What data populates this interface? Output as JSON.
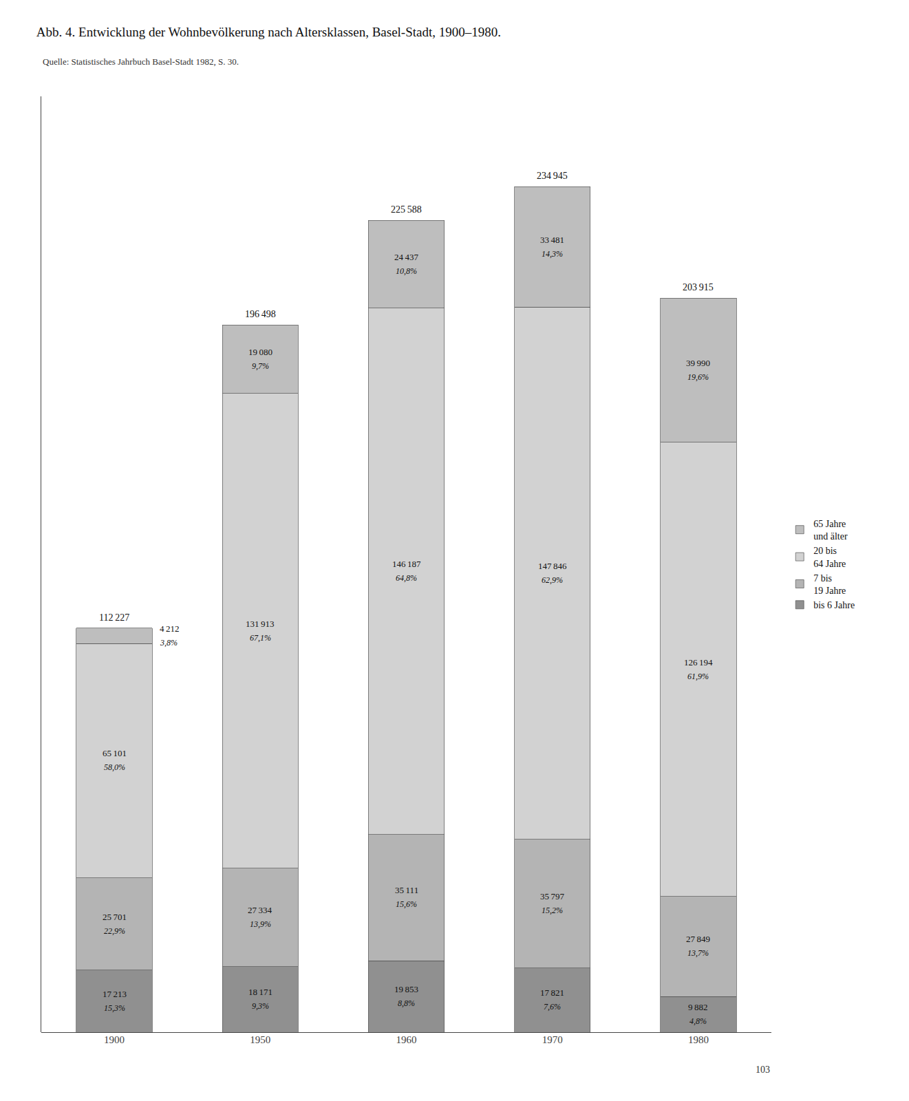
{
  "chart_data": {
    "type": "bar",
    "title": "Abb. 4. Entwicklung der Wohnbevölkerung nach Altersklassen, Basel-Stadt, 1900–1980.",
    "subtitle": "Quelle: Statistisches Jahrbuch Basel-Stadt 1982, S. 30.",
    "annotations": [
      {
        "text": "103"
      }
    ],
    "categories": [
      "1900",
      "1950",
      "1960",
      "1970",
      "1980"
    ],
    "stacked": true,
    "data_labels": true,
    "tick_labels": "x",
    "grid": false,
    "legend": "right",
    "ylim": [
      0,
      260000
    ],
    "totals": [
      112227,
      196498,
      225588,
      234945,
      203915
    ],
    "total_labels": [
      "112 227",
      "196 498",
      "225 588",
      "234 945",
      "203 915"
    ],
    "series": [
      {
        "name": "bis 6 Jahre",
        "color": "#909090",
        "values": [
          17213,
          18171,
          19853,
          17821,
          9882
        ],
        "value_labels": [
          "17 213",
          "18 171",
          "19 853",
          "17 821",
          "9 882"
        ],
        "shares": [
          15.3,
          9.3,
          8.8,
          7.6,
          4.8
        ],
        "share_labels": [
          "15,3%",
          "9,3%",
          "8,8%",
          "7,6%",
          "4,8%"
        ]
      },
      {
        "name": "7 bis\n19 Jahre",
        "color": "#b4b4b4",
        "values": [
          25701,
          27334,
          35111,
          35797,
          27849
        ],
        "value_labels": [
          "25 701",
          "27 334",
          "35 111",
          "35 797",
          "27 849"
        ],
        "shares": [
          22.9,
          13.9,
          15.6,
          15.2,
          13.7
        ],
        "share_labels": [
          "22,9%",
          "13,9%",
          "15,6%",
          "15,2%",
          "13,7%"
        ]
      },
      {
        "name": "20 bis\n64 Jahre",
        "color": "#d2d2d2",
        "values": [
          65101,
          131913,
          146187,
          147846,
          126194
        ],
        "value_labels": [
          "65 101",
          "131 913",
          "146 187",
          "147 846",
          "126 194"
        ],
        "shares": [
          58.0,
          67.1,
          64.8,
          62.9,
          61.9
        ],
        "share_labels": [
          "58,0%",
          "67,1%",
          "64,8%",
          "62,9%",
          "61,9%"
        ]
      },
      {
        "name": "65 Jahre\nund älter",
        "color": "#bebebe",
        "values": [
          4212,
          19080,
          24437,
          33481,
          39990
        ],
        "value_labels": [
          "4 212",
          "19 080",
          "24 437",
          "33 481",
          "39 990"
        ],
        "shares": [
          3.8,
          9.7,
          10.8,
          14.3,
          19.6
        ],
        "share_labels": [
          "3,8%",
          "9,7%",
          "10,8%",
          "14,3%",
          "19,6%"
        ]
      }
    ]
  }
}
